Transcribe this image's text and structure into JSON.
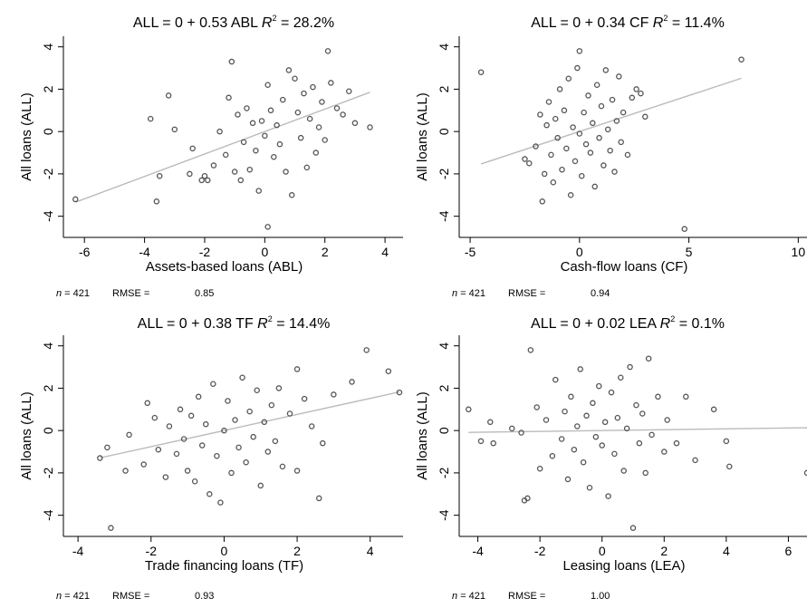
{
  "chart_data": [
    {
      "type": "scatter",
      "title": "ALL = 0 + 0.53 ABL",
      "r2_label": "R",
      "r2_value": " = 28.2%",
      "xlabel": "Assets-based loans (ABL)",
      "ylabel": "All loans (ALL)",
      "xlim": [
        -6.7,
        4.6
      ],
      "ylim": [
        -5,
        4.5
      ],
      "xticks": [
        -6,
        -4,
        -2,
        0,
        2,
        4
      ],
      "yticks": [
        -4,
        -2,
        0,
        2,
        4
      ],
      "n_label": "n",
      "n_value": " = 421",
      "rmse_label": "RMSE =",
      "rmse_value": "0.85",
      "fit": {
        "intercept": 0,
        "slope": 0.53,
        "x_range": [
          -6.3,
          3.5
        ]
      },
      "marker_color": "#555555",
      "line_color": "#bbbbbb",
      "points": [
        [
          -6.3,
          -3.2
        ],
        [
          -3.8,
          0.6
        ],
        [
          -3.6,
          -3.3
        ],
        [
          -3.5,
          -2.1
        ],
        [
          -3.2,
          1.7
        ],
        [
          -3.0,
          0.1
        ],
        [
          -2.5,
          -2.0
        ],
        [
          -2.4,
          -0.8
        ],
        [
          -2.1,
          -2.3
        ],
        [
          -2.0,
          -2.1
        ],
        [
          -1.9,
          -2.3
        ],
        [
          -1.7,
          -1.6
        ],
        [
          -1.5,
          0.0
        ],
        [
          -1.3,
          -1.1
        ],
        [
          -1.2,
          1.6
        ],
        [
          -1.1,
          3.3
        ],
        [
          -1.0,
          -1.9
        ],
        [
          -0.9,
          0.8
        ],
        [
          -0.8,
          -2.3
        ],
        [
          -0.7,
          -0.5
        ],
        [
          -0.6,
          1.1
        ],
        [
          -0.5,
          -1.8
        ],
        [
          -0.4,
          0.4
        ],
        [
          -0.3,
          -0.9
        ],
        [
          -0.2,
          -2.8
        ],
        [
          -0.1,
          0.5
        ],
        [
          0.0,
          -0.2
        ],
        [
          0.1,
          -4.5
        ],
        [
          0.1,
          2.2
        ],
        [
          0.2,
          1.0
        ],
        [
          0.3,
          -1.2
        ],
        [
          0.4,
          0.3
        ],
        [
          0.5,
          -0.6
        ],
        [
          0.6,
          1.5
        ],
        [
          0.7,
          -1.9
        ],
        [
          0.8,
          2.9
        ],
        [
          0.9,
          -3.0
        ],
        [
          1.0,
          2.5
        ],
        [
          1.1,
          0.9
        ],
        [
          1.2,
          -0.3
        ],
        [
          1.3,
          1.8
        ],
        [
          1.4,
          -1.7
        ],
        [
          1.5,
          0.6
        ],
        [
          1.6,
          2.1
        ],
        [
          1.7,
          -1.0
        ],
        [
          1.8,
          0.2
        ],
        [
          1.9,
          1.4
        ],
        [
          2.0,
          -0.4
        ],
        [
          2.1,
          3.8
        ],
        [
          2.2,
          2.3
        ],
        [
          2.4,
          1.1
        ],
        [
          2.6,
          0.8
        ],
        [
          2.8,
          1.9
        ],
        [
          3.0,
          0.4
        ],
        [
          3.5,
          0.2
        ]
      ]
    },
    {
      "type": "scatter",
      "title": "ALL = 0 + 0.34 CF",
      "r2_label": "R",
      "r2_value": " = 11.4%",
      "xlabel": "Cash-flow loans (CF)",
      "ylabel": "All loans (ALL)",
      "xlim": [
        -5.5,
        10.4
      ],
      "ylim": [
        -5,
        4.5
      ],
      "xticks": [
        -5,
        0,
        5,
        10
      ],
      "yticks": [
        -4,
        -2,
        0,
        2,
        4
      ],
      "n_label": "n",
      "n_value": " = 421",
      "rmse_label": "RMSE =",
      "rmse_value": "0.94",
      "fit": {
        "intercept": 0,
        "slope": 0.34,
        "x_range": [
          -4.5,
          7.4
        ]
      },
      "marker_color": "#555555",
      "line_color": "#bbbbbb",
      "points": [
        [
          -4.5,
          2.8
        ],
        [
          -2.5,
          -1.3
        ],
        [
          -2.3,
          -1.5
        ],
        [
          -2.0,
          -0.7
        ],
        [
          -1.8,
          0.8
        ],
        [
          -1.7,
          -3.3
        ],
        [
          -1.6,
          -2.0
        ],
        [
          -1.5,
          0.3
        ],
        [
          -1.4,
          1.4
        ],
        [
          -1.3,
          -1.1
        ],
        [
          -1.2,
          -2.4
        ],
        [
          -1.1,
          0.6
        ],
        [
          -1.0,
          -0.3
        ],
        [
          -0.9,
          2.0
        ],
        [
          -0.8,
          -1.8
        ],
        [
          -0.7,
          1.0
        ],
        [
          -0.6,
          -0.8
        ],
        [
          -0.5,
          2.5
        ],
        [
          -0.4,
          -3.0
        ],
        [
          -0.3,
          0.2
        ],
        [
          -0.2,
          -1.4
        ],
        [
          -0.1,
          3.0
        ],
        [
          0.0,
          -0.1
        ],
        [
          0.0,
          3.8
        ],
        [
          0.1,
          -2.1
        ],
        [
          0.2,
          0.9
        ],
        [
          0.3,
          -0.6
        ],
        [
          0.4,
          1.7
        ],
        [
          0.5,
          -1.0
        ],
        [
          0.6,
          0.4
        ],
        [
          0.7,
          -2.6
        ],
        [
          0.8,
          2.2
        ],
        [
          0.9,
          -0.3
        ],
        [
          1.0,
          1.2
        ],
        [
          1.1,
          -1.6
        ],
        [
          1.2,
          2.9
        ],
        [
          1.3,
          0.1
        ],
        [
          1.4,
          -0.9
        ],
        [
          1.5,
          1.5
        ],
        [
          1.6,
          -1.9
        ],
        [
          1.7,
          0.5
        ],
        [
          1.8,
          2.6
        ],
        [
          1.9,
          -0.5
        ],
        [
          2.0,
          0.9
        ],
        [
          2.2,
          -1.1
        ],
        [
          2.4,
          1.6
        ],
        [
          2.6,
          2.0
        ],
        [
          2.8,
          1.8
        ],
        [
          3.0,
          0.7
        ],
        [
          4.8,
          -4.6
        ],
        [
          7.4,
          3.4
        ]
      ]
    },
    {
      "type": "scatter",
      "title": "ALL = 0 + 0.38 TF",
      "r2_label": "R",
      "r2_value": " = 14.4%",
      "xlabel": "Trade financing loans (TF)",
      "ylabel": "All loans (ALL)",
      "xlim": [
        -4.4,
        4.9
      ],
      "ylim": [
        -5,
        4.5
      ],
      "xticks": [
        -4,
        -2,
        0,
        2,
        4
      ],
      "yticks": [
        -4,
        -2,
        0,
        2,
        4
      ],
      "n_label": "n",
      "n_value": " = 421",
      "rmse_label": "RMSE =",
      "rmse_value": "0.93",
      "fit": {
        "intercept": 0,
        "slope": 0.38,
        "x_range": [
          -3.4,
          4.8
        ]
      },
      "marker_color": "#555555",
      "line_color": "#bbbbbb",
      "points": [
        [
          -3.4,
          -1.3
        ],
        [
          -3.2,
          -0.8
        ],
        [
          -3.1,
          -4.6
        ],
        [
          -2.7,
          -1.9
        ],
        [
          -2.6,
          -0.2
        ],
        [
          -2.2,
          -1.6
        ],
        [
          -2.1,
          1.3
        ],
        [
          -1.9,
          0.6
        ],
        [
          -1.8,
          -0.9
        ],
        [
          -1.6,
          -2.2
        ],
        [
          -1.5,
          0.2
        ],
        [
          -1.3,
          -1.1
        ],
        [
          -1.2,
          1.0
        ],
        [
          -1.1,
          -0.4
        ],
        [
          -1.0,
          -1.9
        ],
        [
          -0.9,
          0.7
        ],
        [
          -0.8,
          -2.4
        ],
        [
          -0.7,
          1.6
        ],
        [
          -0.6,
          -0.7
        ],
        [
          -0.5,
          0.3
        ],
        [
          -0.4,
          -3.0
        ],
        [
          -0.3,
          2.2
        ],
        [
          -0.2,
          -1.2
        ],
        [
          -0.1,
          -3.4
        ],
        [
          0.0,
          0.0
        ],
        [
          0.1,
          1.4
        ],
        [
          0.2,
          -2.0
        ],
        [
          0.3,
          0.5
        ],
        [
          0.4,
          -0.8
        ],
        [
          0.5,
          2.5
        ],
        [
          0.6,
          -1.5
        ],
        [
          0.7,
          0.9
        ],
        [
          0.8,
          -0.3
        ],
        [
          0.9,
          1.9
        ],
        [
          1.0,
          -2.6
        ],
        [
          1.1,
          0.4
        ],
        [
          1.2,
          -1.0
        ],
        [
          1.3,
          1.2
        ],
        [
          1.4,
          -0.5
        ],
        [
          1.5,
          2.0
        ],
        [
          1.6,
          -1.7
        ],
        [
          1.8,
          0.8
        ],
        [
          2.0,
          2.9
        ],
        [
          2.0,
          -1.9
        ],
        [
          2.2,
          1.5
        ],
        [
          2.4,
          0.2
        ],
        [
          2.6,
          -3.2
        ],
        [
          2.7,
          -0.6
        ],
        [
          3.0,
          1.7
        ],
        [
          3.5,
          2.3
        ],
        [
          3.9,
          3.8
        ],
        [
          4.5,
          2.8
        ],
        [
          4.8,
          1.8
        ]
      ]
    },
    {
      "type": "scatter",
      "title": "ALL = 0 + 0.02 LEA",
      "r2_label": "R",
      "r2_value": " = 0.1%",
      "xlabel": "Leasing loans (LEA)",
      "ylabel": "All loans (ALL)",
      "xlim": [
        -4.6,
        6.6
      ],
      "ylim": [
        -5,
        4.5
      ],
      "xticks": [
        -4,
        -2,
        0,
        2,
        4,
        6
      ],
      "yticks": [
        -4,
        -2,
        0,
        2,
        4
      ],
      "n_label": "n",
      "n_value": " = 421",
      "rmse_label": "RMSE =",
      "rmse_value": "1.00",
      "fit": {
        "intercept": 0,
        "slope": 0.02,
        "x_range": [
          -4.3,
          6.6
        ]
      },
      "marker_color": "#555555",
      "line_color": "#bbbbbb",
      "points": [
        [
          -4.3,
          1.0
        ],
        [
          -3.9,
          -0.5
        ],
        [
          -3.6,
          0.4
        ],
        [
          -3.5,
          -0.6
        ],
        [
          -2.9,
          0.1
        ],
        [
          -2.6,
          -0.1
        ],
        [
          -2.5,
          -3.3
        ],
        [
          -2.4,
          -3.2
        ],
        [
          -2.3,
          3.8
        ],
        [
          -2.1,
          1.1
        ],
        [
          -2.0,
          -1.8
        ],
        [
          -1.8,
          0.5
        ],
        [
          -1.6,
          -1.2
        ],
        [
          -1.5,
          2.4
        ],
        [
          -1.3,
          -0.4
        ],
        [
          -1.2,
          0.9
        ],
        [
          -1.1,
          -2.3
        ],
        [
          -1.0,
          1.6
        ],
        [
          -0.9,
          -0.9
        ],
        [
          -0.8,
          0.2
        ],
        [
          -0.7,
          2.9
        ],
        [
          -0.6,
          -1.5
        ],
        [
          -0.5,
          0.7
        ],
        [
          -0.4,
          -2.7
        ],
        [
          -0.3,
          1.3
        ],
        [
          -0.2,
          -0.3
        ],
        [
          -0.1,
          2.1
        ],
        [
          0.0,
          -0.7
        ],
        [
          0.1,
          0.4
        ],
        [
          0.2,
          -3.1
        ],
        [
          0.3,
          1.8
        ],
        [
          0.4,
          -1.1
        ],
        [
          0.5,
          0.6
        ],
        [
          0.6,
          2.5
        ],
        [
          0.7,
          -1.9
        ],
        [
          0.8,
          0.1
        ],
        [
          0.9,
          3.0
        ],
        [
          1.0,
          -4.6
        ],
        [
          1.1,
          1.2
        ],
        [
          1.2,
          -0.6
        ],
        [
          1.3,
          0.8
        ],
        [
          1.4,
          -2.0
        ],
        [
          1.5,
          3.4
        ],
        [
          1.6,
          -0.2
        ],
        [
          1.8,
          1.6
        ],
        [
          2.0,
          -1.0
        ],
        [
          2.1,
          0.5
        ],
        [
          2.4,
          -0.6
        ],
        [
          2.7,
          1.6
        ],
        [
          3.0,
          -1.4
        ],
        [
          3.6,
          1.0
        ],
        [
          4.0,
          -0.5
        ],
        [
          4.1,
          -1.7
        ],
        [
          6.6,
          -2.0
        ]
      ]
    }
  ]
}
